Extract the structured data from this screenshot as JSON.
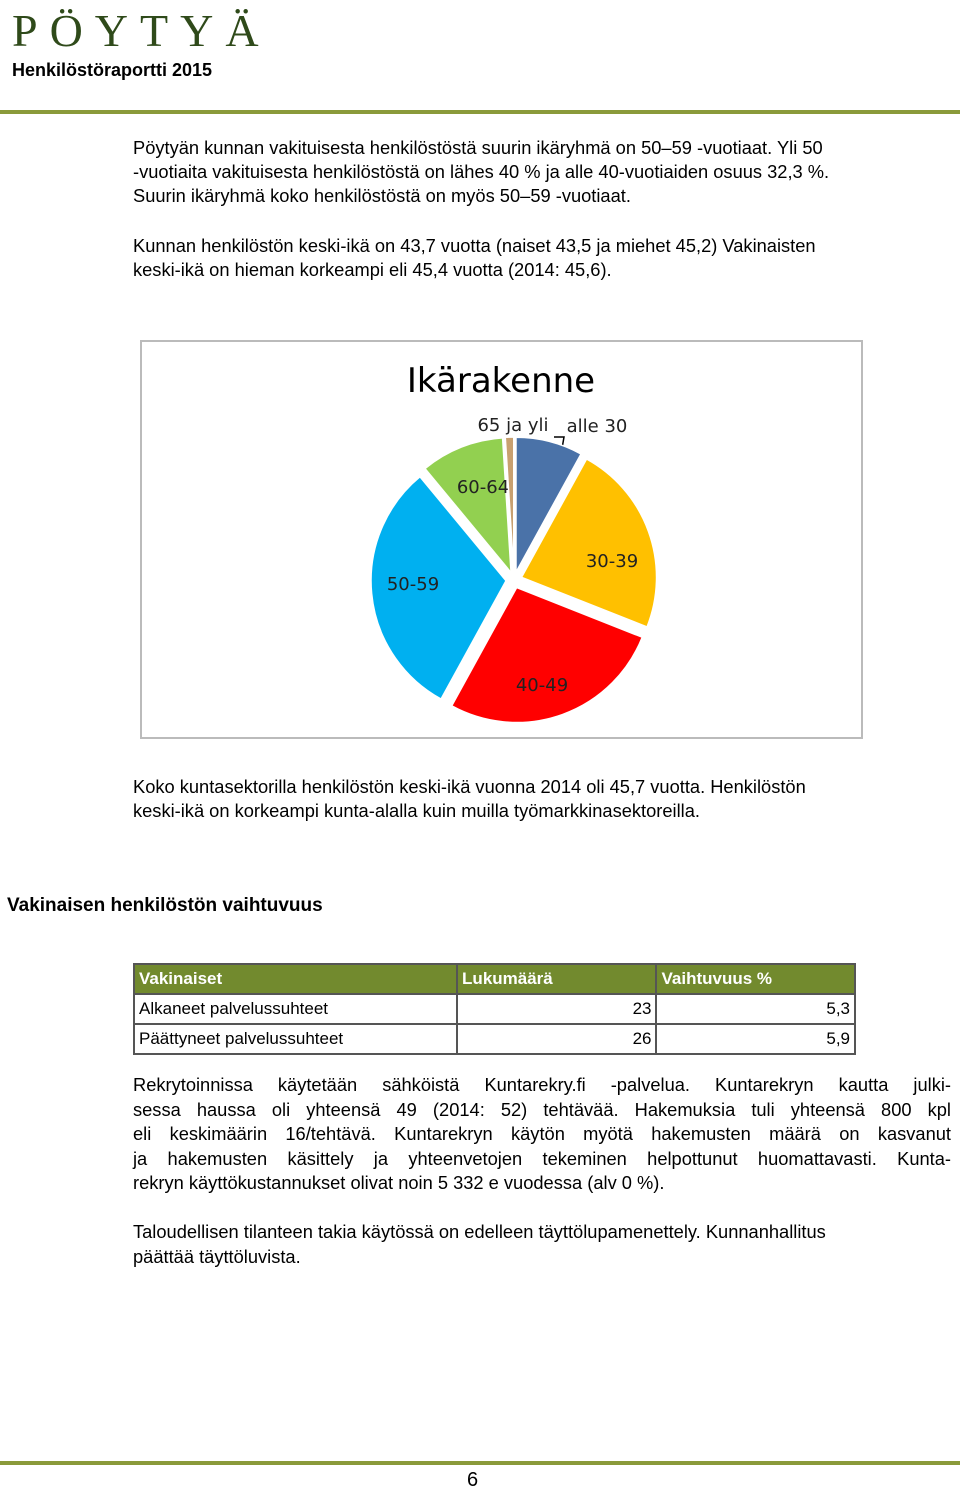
{
  "header": {
    "logo": "PÖYTYÄ",
    "subtitle": "Henkilöstöraportti 2015"
  },
  "intro": [
    [
      "Pöytyän kunnan vakituisesta henkilöstöstä suurin ikäryhmä on 50–59  -vuotiaat. Yli 50",
      "-vuotiaita vakituisesta henkilöstöstä on lähes 40 % ja alle 40-vuotiaiden osuus 32,3 %.",
      "Suurin ikäryhmä koko henkilöstöstä on myös 50–59 -vuotiaat."
    ],
    [
      "Kunnan henkilöstön keski-ikä on 43,7 vuotta (naiset 43,5 ja miehet 45,2) Vakinaisten",
      "keski-ikä on hieman korkeampi eli 45,4 vuotta (2014: 45,6)."
    ]
  ],
  "chart_data": {
    "type": "pie",
    "title": "Ikärakenne",
    "categories": [
      "alle 30",
      "30-39",
      "40-49",
      "50-59",
      "60-64",
      "65 ja yli"
    ],
    "values": [
      8,
      23,
      27,
      31,
      10,
      1
    ],
    "colors": [
      "#4a72a8",
      "#ffc000",
      "#ff0000",
      "#00b0f0",
      "#92d050",
      "#c8a070"
    ]
  },
  "after_chart": [
    "Koko kuntasektorilla henkilöstön keski-ikä vuonna 2014 oli 45,7 vuotta. Henkilöstön",
    "keski-ikä on korkeampi kunta-alalla kuin muilla työmarkkinasektoreilla."
  ],
  "section_title": "Vakinaisen henkilöstön vaihtuvuus",
  "table": {
    "header": [
      "Vakinaiset",
      "Lukumäärä",
      "Vaihtuvuus %"
    ],
    "rows": [
      [
        "Alkaneet palvelussuhteet",
        23,
        "5,3"
      ],
      [
        "Päättyneet palvelussuhteet",
        26,
        "5,9"
      ]
    ]
  },
  "recruit": [
    [
      "Rekrytoinnissa käytetään sähköistä Kuntarekry.fi -palvelua. Kuntarekryn kautta julki-",
      "sessa haussa oli yhteensä 49 (2014: 52) tehtävää. Hakemuksia tuli yhteensä 800 kpl",
      "eli keskimäärin 16/tehtävä. Kuntarekryn käytön myötä hakemusten määrä on kasvanut",
      "ja hakemusten käsittely ja yhteenvetojen tekeminen helpottunut huomattavasti. Kunta-",
      "rekryn käyttökustannukset olivat noin 5 332 e vuodessa (alv 0 %)."
    ],
    [
      "Taloudellisen tilanteen takia käytössä on edelleen täyttölupamenettely. Kunnanhallitus",
      "päättää täyttöluvista."
    ]
  ],
  "page_number": "6"
}
